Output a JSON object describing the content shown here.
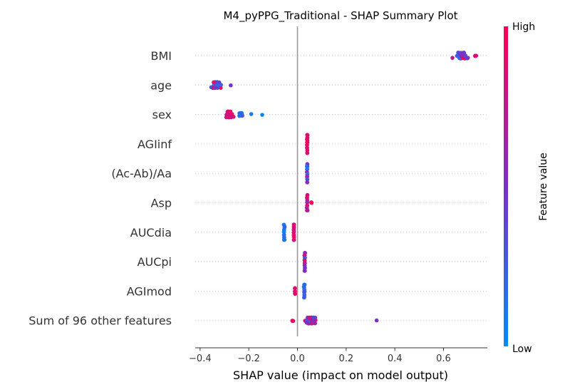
{
  "chart_data": {
    "type": "scatter",
    "title": "M4_pyPPG_Traditional - SHAP Summary Plot",
    "xlabel": "SHAP value (impact on model output)",
    "xlim": [
      -0.42,
      0.78
    ],
    "xticks": [
      -0.4,
      -0.2,
      0.0,
      0.2,
      0.4,
      0.6
    ],
    "xtick_labels": [
      "−0.4",
      "−0.2",
      "0.0",
      "0.2",
      "0.4",
      "0.6"
    ],
    "features": [
      "BMI",
      "age",
      "sex",
      "AGIinf",
      "(Ac-Ab)/Aa",
      "Asp",
      "AUCdia",
      "AUCpi",
      "AGImod",
      "Sum of 96 other features"
    ],
    "colorbar": {
      "label": "Feature value",
      "high_label": "High",
      "low_label": "Low",
      "high_color": "#ff0052",
      "mid_color": "#7b2fc8",
      "low_color": "#008bfb"
    },
    "zero_line": true,
    "grid": false,
    "series": [
      {
        "clusters": [
          {
            "center": 0.675,
            "spread": 0.05,
            "count": 44,
            "fv": 0.5,
            "fvspread": 0.45,
            "rows": 3
          },
          {
            "center": 0.73,
            "spread": 0.008,
            "count": 3,
            "fv": 0.85,
            "fvspread": 0.1,
            "rows": 1
          }
        ]
      },
      {
        "clusters": [
          {
            "center": -0.335,
            "spread": 0.03,
            "count": 40,
            "fv": 0.5,
            "fvspread": 0.45,
            "rows": 3
          },
          {
            "center": -0.275,
            "spread": 0.004,
            "count": 1,
            "fv": 0.5,
            "fvspread": 0.0,
            "rows": 1
          }
        ]
      },
      {
        "clusters": [
          {
            "center": -0.28,
            "spread": 0.022,
            "count": 30,
            "fv": 0.82,
            "fvspread": 0.15,
            "rows": 3
          },
          {
            "center": -0.235,
            "spread": 0.012,
            "count": 10,
            "fv": 0.2,
            "fvspread": 0.15,
            "rows": 2
          },
          {
            "center": -0.19,
            "spread": 0.002,
            "count": 1,
            "fv": 0.1,
            "fvspread": 0.0,
            "rows": 1
          },
          {
            "center": -0.145,
            "spread": 0.002,
            "count": 1,
            "fv": 0.05,
            "fvspread": 0.0,
            "rows": 1
          }
        ]
      },
      {
        "clusters": [
          {
            "center": 0.04,
            "spread": 0.002,
            "count": 16,
            "fv": 0.92,
            "fvspread": 0.06,
            "rows": 8
          }
        ]
      },
      {
        "clusters": [
          {
            "center": 0.04,
            "spread": 0.002,
            "count": 16,
            "fv": 0.45,
            "fvspread": 0.35,
            "rows": 8
          }
        ]
      },
      {
        "clusters": [
          {
            "center": 0.04,
            "spread": 0.002,
            "count": 14,
            "fv": 0.8,
            "fvspread": 0.25,
            "rows": 7
          },
          {
            "center": 0.058,
            "spread": 0.003,
            "count": 3,
            "fv": 0.95,
            "fvspread": 0.03,
            "rows": 1
          }
        ]
      },
      {
        "clusters": [
          {
            "center": -0.055,
            "spread": 0.003,
            "count": 14,
            "fv": 0.15,
            "fvspread": 0.12,
            "rows": 7
          },
          {
            "center": -0.015,
            "spread": 0.002,
            "count": 14,
            "fv": 0.9,
            "fvspread": 0.08,
            "rows": 7
          }
        ]
      },
      {
        "clusters": [
          {
            "center": 0.03,
            "spread": 0.002,
            "count": 16,
            "fv": 0.6,
            "fvspread": 0.35,
            "rows": 8
          }
        ]
      },
      {
        "clusters": [
          {
            "center": -0.01,
            "spread": 0.002,
            "count": 6,
            "fv": 0.92,
            "fvspread": 0.06,
            "rows": 3
          },
          {
            "center": 0.028,
            "spread": 0.002,
            "count": 12,
            "fv": 0.2,
            "fvspread": 0.15,
            "rows": 6
          }
        ]
      },
      {
        "clusters": [
          {
            "center": 0.055,
            "spread": 0.028,
            "count": 46,
            "fv": 0.55,
            "fvspread": 0.42,
            "rows": 3
          },
          {
            "center": -0.02,
            "spread": 0.006,
            "count": 3,
            "fv": 0.9,
            "fvspread": 0.05,
            "rows": 1
          },
          {
            "center": 0.325,
            "spread": 0.001,
            "count": 1,
            "fv": 0.5,
            "fvspread": 0.0,
            "rows": 1
          }
        ]
      }
    ]
  }
}
